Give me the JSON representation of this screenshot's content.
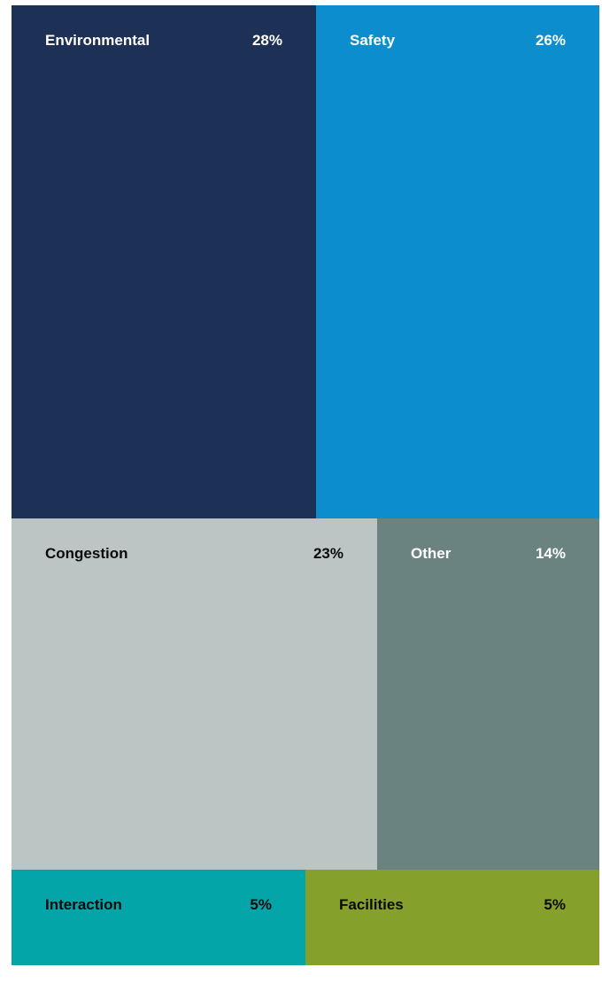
{
  "chart_data": {
    "type": "treemap",
    "title": "",
    "rows": [
      {
        "items": [
          {
            "name": "Environmental",
            "value": 28,
            "label": "28%",
            "color": "#1c3155",
            "text_color": "#ffffff"
          },
          {
            "name": "Safety",
            "value": 26,
            "label": "26%",
            "color": "#0b8dce",
            "text_color": "#ffffff"
          }
        ]
      },
      {
        "items": [
          {
            "name": "Congestion",
            "value": 23,
            "label": "23%",
            "color": "#bdc5c4",
            "text_color": "#0a0a0a"
          },
          {
            "name": "Other",
            "value": 14,
            "label": "14%",
            "color": "#6a8381",
            "text_color": "#ffffff"
          }
        ]
      },
      {
        "items": [
          {
            "name": "Interaction",
            "value": 5,
            "label": "5%",
            "color": "#04a5a9",
            "text_color": "#0a0a0a"
          },
          {
            "name": "Facilities",
            "value": 5,
            "label": "5%",
            "color": "#86a12b",
            "text_color": "#0a0a0a"
          }
        ]
      }
    ]
  }
}
